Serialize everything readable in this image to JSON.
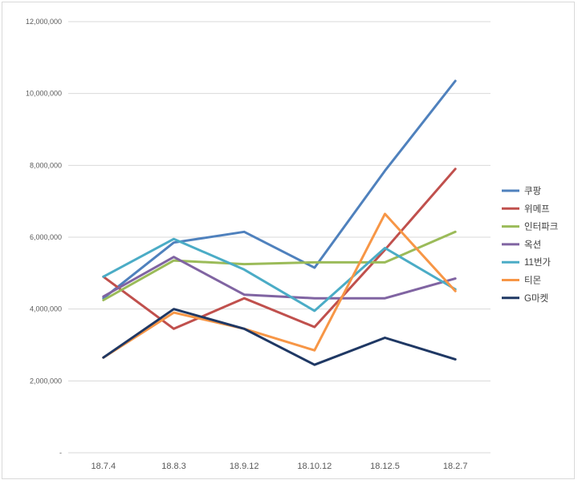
{
  "chart_data": {
    "type": "line",
    "title": "",
    "xlabel": "",
    "ylabel": "",
    "categories": [
      "18.7.4",
      "18.8.3",
      "18.9.12",
      "18.10.12",
      "18.12.5",
      "18.2.7"
    ],
    "ylim": [
      0,
      12000000
    ],
    "yticks": [
      {
        "value": 0,
        "label": "-"
      },
      {
        "value": 2000000,
        "label": "2,000,000"
      },
      {
        "value": 4000000,
        "label": "4,000,000"
      },
      {
        "value": 6000000,
        "label": "6,000,000"
      },
      {
        "value": 8000000,
        "label": "8,000,000"
      },
      {
        "value": 10000000,
        "label": "10,000,000"
      },
      {
        "value": 12000000,
        "label": "12,000,000"
      }
    ],
    "grid": true,
    "legend_position": "right",
    "series": [
      {
        "name": "쿠팡",
        "color": "#4f81bd",
        "values": [
          4300000,
          5850000,
          6150000,
          5150000,
          7850000,
          10350000
        ]
      },
      {
        "name": "위메프",
        "color": "#c0504d",
        "values": [
          4900000,
          3450000,
          4300000,
          3500000,
          5650000,
          7900000
        ]
      },
      {
        "name": "인터파크",
        "color": "#9bbb59",
        "values": [
          4250000,
          5350000,
          5250000,
          5300000,
          5300000,
          6150000
        ]
      },
      {
        "name": "옥션",
        "color": "#8064a2",
        "values": [
          4350000,
          5450000,
          4400000,
          4300000,
          4300000,
          4850000
        ]
      },
      {
        "name": "11번가",
        "color": "#4bacc6",
        "values": [
          4900000,
          5950000,
          5100000,
          3950000,
          5700000,
          4550000
        ]
      },
      {
        "name": "티몬",
        "color": "#f79646",
        "values": [
          2650000,
          3900000,
          3450000,
          2850000,
          6650000,
          4500000
        ]
      },
      {
        "name": "G마켓",
        "color": "#1f3864",
        "values": [
          2650000,
          4000000,
          3450000,
          2450000,
          3200000,
          2600000
        ]
      }
    ]
  }
}
